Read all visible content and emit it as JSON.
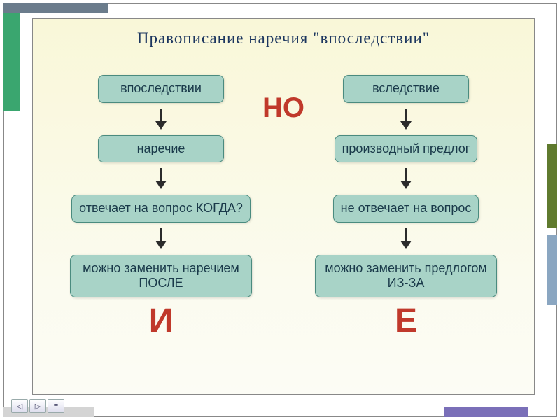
{
  "title": "Правописание наречия \"впоследствии\"",
  "title_color": "#1c365f",
  "middle_label": "НО",
  "middle_color": "#c0392b",
  "box_bg": "#a8d3c7",
  "box_border": "#4a8b7f",
  "box_text_color": "#1a3a4a",
  "arrow_color": "#2b2b2b",
  "left": {
    "boxes": [
      "впоследствии",
      "наречие",
      "отвечает на вопрос КОГДА?",
      "можно заменить наречием ПОСЛЕ"
    ],
    "letter": "И",
    "letter_color": "#c0392b"
  },
  "right": {
    "boxes": [
      "вследствие",
      "производный предлог",
      "не отвечает на вопрос",
      "можно заменить предлогом ИЗ-ЗА"
    ],
    "letter": "Е",
    "letter_color": "#c0392b"
  },
  "frame": {
    "top_color": "#6b7c8c",
    "left_color": "#3aa66f",
    "right1_color": "#5f7a2e",
    "right2_color": "#8aa6c1",
    "bottom_left_color": "#d4d4d4",
    "bottom_right_color": "#7a6fb8"
  }
}
